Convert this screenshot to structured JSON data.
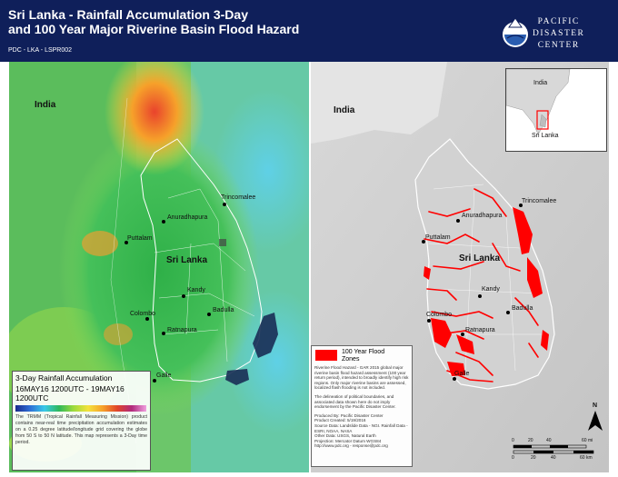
{
  "header": {
    "title": "Sri Lanka -  Rainfall Accumulation 3-Day\nand 100 Year Major Riverine Basin Flood Hazard",
    "product_id": "PDC - LKA - LSPR002",
    "logo_text": "PACIFIC\nDISASTER\nCENTER"
  },
  "left_map": {
    "labels": {
      "india": "India",
      "sri_lanka": "Sri Lanka",
      "trincomalee": "Trincomalee",
      "anuradhapura": "Anuradhapura",
      "puttalam": "Puttalam",
      "kandy": "Kandy",
      "badulla": "Badulla",
      "colombo": "Colombo",
      "ratnapura": "Ratnapura",
      "galle": "Galle"
    },
    "legend": {
      "title": "3-Day Rainfall Accumulation",
      "dates": "16MAY16 1200UTC - 19MAY16  1200UTC",
      "description": "The TRMM (Tropical Rainfall Measuring Mission) product contains near-real time precipitation accumulation estimates on a 0.25 degree latitude/longitude grid covering the globe from 50 S to 50 N latitude. This map represents a 3-Day time period."
    }
  },
  "right_map": {
    "labels": {
      "india": "India",
      "sri_lanka": "Sri Lanka",
      "trincomalee": "Trincomalee",
      "anuradhapura": "Anuradhapura",
      "puttalam": "Puttalam",
      "kandy": "Kandy",
      "badulla": "Badulla",
      "colombo": "Colombo",
      "ratnapura": "Ratnapura",
      "galle": "Galle"
    },
    "inset": {
      "india": "India",
      "sri_lanka": "Sri Lanka"
    },
    "legend": {
      "swatch_label": "100 Year Flood\nZones",
      "swatch_color": "#ff0000",
      "para1": "Riverine Flood Hazard - GAR 2015 global major riverine basin flood hazard assessment (100 year return period), intended to broadly identify high risk regions. Only major riverine basins are assessed, localized flash flooding is not included.",
      "para2": "The delineation of political boundaries, and associated data shown here do not imply endorsement by the Pacific Disaster Center.",
      "para3": "Produced By: Pacific Disaster Center\nProduct Created: 5/19/2016\nSource Data: Landslide Data - NGI. Rainfall Data - ESRI, NOAA, NASA\nOther Data: USGS, Natural Earth\nProjection: Mercator Datum WGS84\nhttp://www.pdc.org - response@pdc.org"
    },
    "scale": {
      "mi_ticks": [
        "0",
        "20",
        "40",
        "60 mi"
      ],
      "km_ticks": [
        "0",
        "20",
        "40",
        "60 km"
      ]
    },
    "north_label": "N"
  },
  "colors": {
    "header_bg": "#0f1f5a",
    "flood": "#ff0000"
  }
}
